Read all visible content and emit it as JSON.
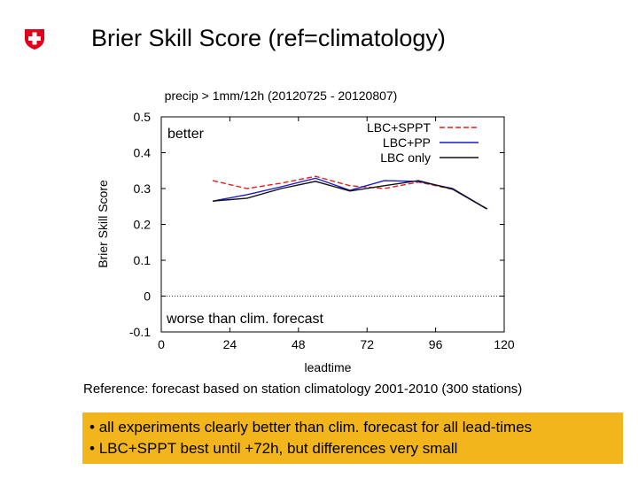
{
  "slide": {
    "title": "Brier Skill Score (ref=climatology)",
    "reference": "Reference: forecast based on station climatology 2001-2010 (300 stations)",
    "bullets": [
      "all experiments clearly better than clim. forecast for all lead-times",
      "LBC+SPPT best until +72h, but differences very small"
    ],
    "bullet_glyph": "•",
    "colors": {
      "logo_red": "#e3001b",
      "summary_bg": "#f2b51b"
    }
  },
  "chart_data": {
    "type": "line",
    "title": "precip > 1mm/12h (20120725 - 20120807)",
    "xlabel": "leadtime",
    "ylabel": "Brier Skill Score",
    "xlim": [
      0,
      120
    ],
    "ylim": [
      -0.1,
      0.5
    ],
    "xticks": [
      0,
      24,
      48,
      72,
      96,
      120
    ],
    "yticks": [
      -0.1,
      0,
      0.1,
      0.2,
      0.3,
      0.4,
      0.5
    ],
    "ytick_labels": [
      "-0.1",
      "0",
      "0.1",
      "0.2",
      "0.3",
      "0.4",
      "0.5"
    ],
    "legend_position": "top-right",
    "annotations": {
      "better": "better",
      "worse": "worse than clim. forecast"
    },
    "zero_line": 0,
    "x": [
      18,
      30,
      42,
      54,
      66,
      78,
      90,
      102,
      114
    ],
    "series": [
      {
        "name": "LBC+SPPT",
        "color": "#e02020",
        "dash": "6,3",
        "values": [
          0.322,
          0.3,
          0.315,
          0.334,
          0.308,
          0.3,
          0.318,
          0.298,
          0.244
        ]
      },
      {
        "name": "LBC+PP",
        "color": "#1a1acc",
        "dash": "",
        "values": [
          0.265,
          0.283,
          0.305,
          0.329,
          0.295,
          0.322,
          0.32,
          0.3,
          0.243
        ]
      },
      {
        "name": "LBC only",
        "color": "#111111",
        "dash": "",
        "values": [
          0.265,
          0.273,
          0.3,
          0.32,
          0.293,
          0.308,
          0.322,
          0.298,
          0.243
        ]
      }
    ]
  }
}
